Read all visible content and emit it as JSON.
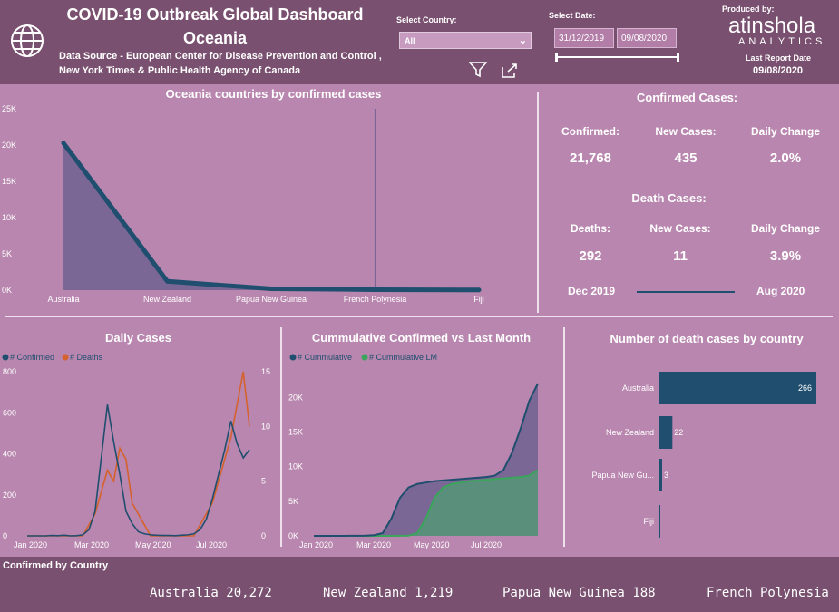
{
  "header": {
    "title_line1": "COVID-19 Outbreak Global Dashboard",
    "title_line2": "Oceania",
    "source_line1": "Data Source - European Center for Disease Prevention and Control ,",
    "source_line2": "New York Times &  Public Health Agency of Canada",
    "country_label": "Select Country:",
    "country_value": "All",
    "date_label": "Select Date:",
    "date_from": "31/12/2019",
    "date_to": "09/08/2020",
    "produced_by": "Produced by:",
    "brand_top": "atinshola",
    "brand_bottom": "ANALYTICS",
    "report_label": "Last Report Date",
    "report_date": "09/08/2020"
  },
  "colors": {
    "header_bg": "#79506f",
    "page_bg": "#b886ae",
    "navy": "#1f4e6e",
    "orange": "#d5622c",
    "green": "#3aa55b"
  },
  "kpis": {
    "confirmed_heading": "Confirmed Cases:",
    "confirmed_label": "Confirmed:",
    "confirmed_value": "21,768",
    "new_cases_label": "New Cases:",
    "new_cases_value": "435",
    "daily_change_label": "Daily Change",
    "daily_change_value": "2.0%",
    "death_heading": "Death Cases:",
    "deaths_label": "Deaths:",
    "deaths_value": "292",
    "death_new_label": "New Cases:",
    "death_new_value": "11",
    "death_change_label": "Daily Change",
    "death_change_value": "3.9%",
    "range_start": "Dec 2019",
    "range_end": "Aug 2020"
  },
  "chart_data": [
    {
      "id": "countries",
      "type": "area",
      "title": "Oceania countries by confirmed cases",
      "categories": [
        "Australia",
        "New Zealand",
        "Papua New Guinea",
        "French Polynesia",
        "Fiji"
      ],
      "values": [
        20272,
        1219,
        188,
        70,
        27
      ],
      "yticks": [
        "0K",
        "5K",
        "10K",
        "15K",
        "20K",
        "25K"
      ],
      "ylim": [
        0,
        25000
      ]
    },
    {
      "id": "daily",
      "type": "line",
      "title": "Daily Cases",
      "legend": [
        "# Confirmed",
        "# Deaths"
      ],
      "xticks": [
        "Jan 2020",
        "Mar 2020",
        "May 2020",
        "Jul 2020"
      ],
      "yticks_left": [
        "0",
        "200",
        "400",
        "600",
        "800"
      ],
      "yticks_right": [
        "0",
        "5",
        "10",
        "15"
      ],
      "ylim_left": [
        0,
        800
      ],
      "ylim_right": [
        0,
        15
      ],
      "confirmed": [
        0,
        0,
        0,
        0,
        2,
        1,
        3,
        0,
        1,
        5,
        30,
        120,
        380,
        640,
        460,
        300,
        120,
        60,
        20,
        10,
        5,
        3,
        2,
        2,
        1,
        3,
        5,
        10,
        30,
        80,
        180,
        300,
        420,
        560,
        450,
        380,
        420
      ],
      "deaths": [
        0,
        0,
        0,
        0,
        0,
        0,
        0,
        0,
        0,
        0,
        1,
        2,
        4,
        6,
        5,
        8,
        7,
        3,
        2,
        1,
        0,
        0,
        0,
        0,
        0,
        0,
        0,
        0,
        1,
        2,
        3,
        5,
        7,
        9,
        12,
        15,
        10
      ]
    },
    {
      "id": "cumulative",
      "type": "area",
      "title": "Cummulative Confirmed vs Last Month",
      "legend": [
        "# Cummulative",
        "# Cummulative LM"
      ],
      "xticks": [
        "Jan 2020",
        "Mar 2020",
        "May 2020",
        "Jul 2020"
      ],
      "yticks": [
        "0K",
        "5K",
        "10K",
        "15K",
        "20K"
      ],
      "ylim": [
        0,
        22000
      ],
      "cumulative": [
        0,
        0,
        0,
        0,
        10,
        20,
        40,
        100,
        400,
        2500,
        5500,
        7000,
        7500,
        7700,
        7900,
        8000,
        8100,
        8200,
        8300,
        8400,
        8500,
        8700,
        9500,
        12000,
        15500,
        19500,
        22000
      ],
      "cumulative_lm": [
        0,
        0,
        0,
        0,
        0,
        0,
        0,
        0,
        0,
        0,
        10,
        40,
        400,
        2500,
        5500,
        7000,
        7500,
        7700,
        7900,
        8000,
        8100,
        8200,
        8300,
        8400,
        8500,
        8700,
        9500
      ]
    },
    {
      "id": "deaths_by_country",
      "type": "bar",
      "title": "Number of death cases by country",
      "categories": [
        "Australia",
        "New Zealand",
        "Papua New Gu...",
        "Fiji"
      ],
      "values": [
        266,
        22,
        3,
        0
      ],
      "labels": [
        "266",
        "22",
        "3",
        ""
      ],
      "xlim": [
        0,
        266
      ]
    }
  ],
  "ticker": {
    "title": "Confirmed by Country",
    "items": [
      "Australia 20,272",
      "New Zealand 1,219",
      "Papua New Guinea 188",
      "French Polynesia"
    ]
  }
}
